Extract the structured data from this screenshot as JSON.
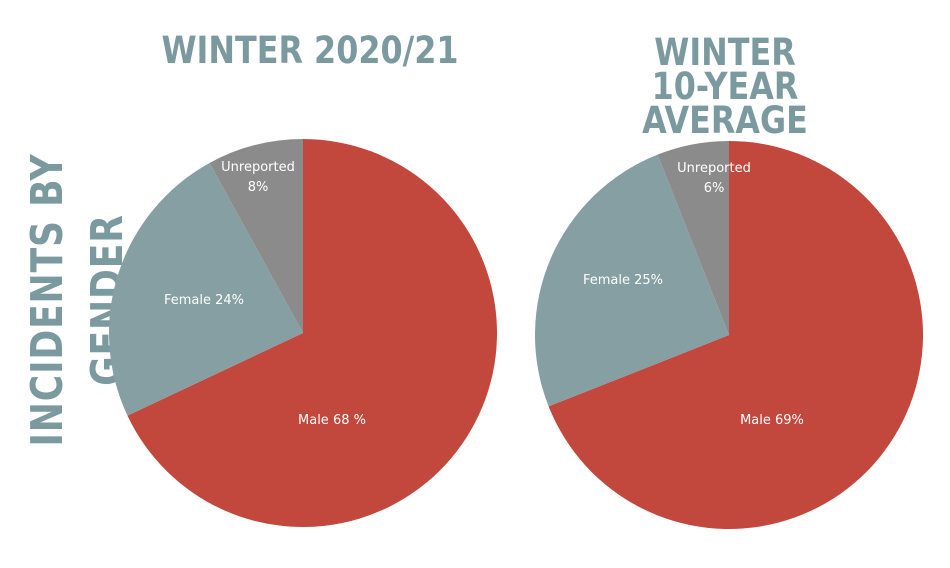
{
  "side_title": "INCIDENTS BY GENDER",
  "chart_data": [
    {
      "type": "pie",
      "title": "WINTER 2020/21",
      "slices": [
        {
          "name": "Male",
          "value": 68,
          "color": "#c2473c",
          "label_lines": [
            "Male 68 %"
          ]
        },
        {
          "name": "Female",
          "value": 24,
          "color": "#869fa3",
          "label_lines": [
            "Female 24%"
          ]
        },
        {
          "name": "Unreported",
          "value": 8,
          "color": "#8c8b8b",
          "label_lines": [
            "Unreported",
            "8%"
          ]
        }
      ]
    },
    {
      "type": "pie",
      "title_lines": [
        "WINTER",
        "10-YEAR AVERAGE"
      ],
      "slices": [
        {
          "name": "Male",
          "value": 69,
          "color": "#c2473c",
          "label_lines": [
            "Male 69%"
          ]
        },
        {
          "name": "Female",
          "value": 25,
          "color": "#869fa3",
          "label_lines": [
            "Female 25%"
          ]
        },
        {
          "name": "Unreported",
          "value": 6,
          "color": "#8c8b8b",
          "label_lines": [
            "Unreported",
            "6%"
          ]
        }
      ]
    }
  ]
}
